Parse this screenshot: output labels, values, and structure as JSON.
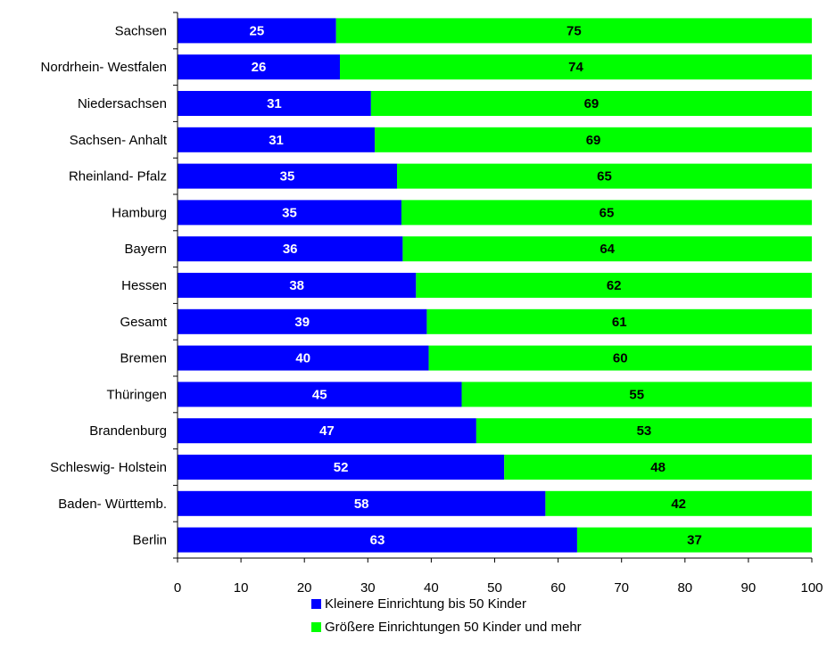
{
  "chart_data": {
    "type": "bar",
    "orientation": "horizontal",
    "stacked": true,
    "categories": [
      "Sachsen",
      "Nordrhein- Westfalen",
      "Niedersachsen",
      "Sachsen- Anhalt",
      "Rheinland- Pfalz",
      "Hamburg",
      "Bayern",
      "Hessen",
      "Gesamt",
      "Bremen",
      "Thüringen",
      "Brandenburg",
      "Schleswig- Holstein",
      "Baden- Württemb.",
      "Berlin"
    ],
    "series": [
      {
        "name": "Kleinere Einrichtung bis 50 Kinder",
        "color": "#0000ff",
        "label_color": "#ffffff",
        "values": [
          25,
          26,
          31,
          31,
          35,
          35,
          36,
          38,
          39,
          40,
          45,
          47,
          52,
          58,
          63
        ],
        "labels": [
          "25",
          "26",
          "31",
          "31",
          "35",
          "35",
          "36",
          "38",
          "39",
          "40",
          "45",
          "47",
          "52",
          "58",
          "63"
        ],
        "bar_extent": [
          25,
          25.6,
          30.5,
          31.1,
          34.6,
          35.3,
          35.5,
          37.6,
          39.3,
          39.6,
          44.8,
          47.1,
          51.5,
          58.0,
          63.0
        ]
      },
      {
        "name": "Größere Einrichtungen 50 Kinder und mehr",
        "color": "#00ff00",
        "label_color": "#000000",
        "values": [
          75,
          74,
          69,
          69,
          65,
          65,
          64,
          62,
          61,
          60,
          55,
          53,
          48,
          42,
          37
        ],
        "labels": [
          "75",
          "74",
          "69",
          "69",
          "65",
          "65",
          "64",
          "62",
          "61",
          "60",
          "55",
          "53",
          "48",
          "42",
          "37"
        ]
      }
    ],
    "xlim": [
      0,
      100
    ],
    "xticks": [
      "0",
      "10",
      "20",
      "30",
      "40",
      "50",
      "60",
      "70",
      "80",
      "90",
      "100"
    ],
    "title": "",
    "xlabel": "",
    "ylabel": "",
    "grid": false,
    "legend_position": "bottom"
  }
}
